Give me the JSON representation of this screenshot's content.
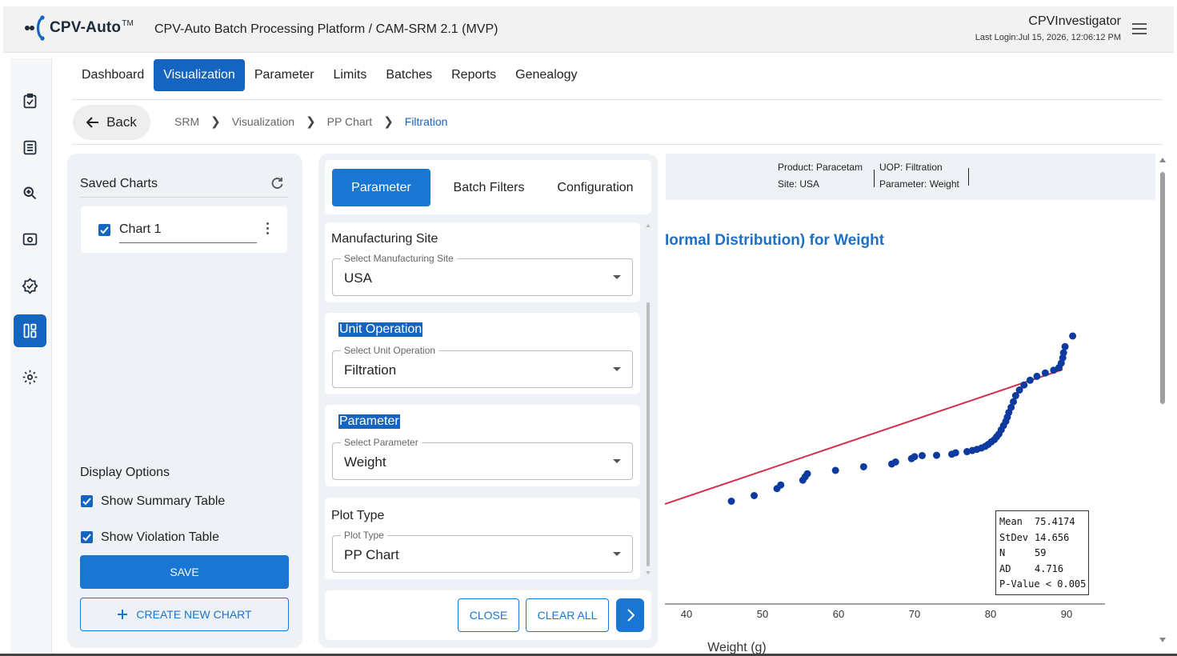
{
  "header": {
    "logo_text": "CPV-Auto",
    "logo_sup": "TM",
    "app_title": "CPV-Auto Batch Processing Platform / CAM-SRM 2.1 (MVP)",
    "user_name": "CPVInvestigator",
    "last_login": "Last Login:Jul 15, 2026, 12:06:12 PM"
  },
  "sidebar": {
    "items": [
      {
        "icon": "clipboard-check-icon"
      },
      {
        "icon": "list-icon"
      },
      {
        "icon": "zoom-icon"
      },
      {
        "icon": "monitor-icon"
      },
      {
        "icon": "badge-check-icon"
      },
      {
        "icon": "dashboard-icon",
        "active": true
      },
      {
        "icon": "gear-icon"
      }
    ]
  },
  "nav": {
    "items": [
      "Dashboard",
      "Visualization",
      "Parameter",
      "Limits",
      "Batches",
      "Reports",
      "Genealogy"
    ],
    "active": "Visualization"
  },
  "breadcrumb": {
    "back": "Back",
    "items": [
      "SRM",
      "Visualization",
      "PP Chart",
      "Filtration"
    ]
  },
  "saved_charts": {
    "title": "Saved Charts",
    "items": [
      {
        "name": "Chart 1",
        "checked": true
      }
    ]
  },
  "display_options": {
    "title": "Display Options",
    "summary_table": "Show Summary Table",
    "violation_table": "Show Violation Table",
    "save": "SAVE",
    "create_new": "CREATE NEW CHART"
  },
  "config_panel": {
    "tabs": [
      "Parameter",
      "Batch Filters",
      "Configuration"
    ],
    "active_tab": "Parameter",
    "fields": [
      {
        "title": "Manufacturing Site",
        "legend": "Select Manufacturing Site",
        "value": "USA"
      },
      {
        "title": "Unit Operation",
        "legend": "Select Unit Operation",
        "value": "Filtration"
      },
      {
        "title": "Parameter",
        "legend": "Select Parameter",
        "value": "Weight"
      },
      {
        "title": "Plot Type",
        "legend": "Plot Type",
        "value": "PP Chart"
      }
    ],
    "close": "CLOSE",
    "clear_all": "CLEAR ALL"
  },
  "chart_info": {
    "product": "Product: Paracetam",
    "site": "Site: USA",
    "uop": "UOP: Filtration",
    "parameter": "Parameter: Weight"
  },
  "chart_data": {
    "type": "scatter",
    "title": "Iormal Distribution) for Weight",
    "xlabel": "Weight (g)",
    "xticks": [
      40,
      50,
      60,
      70,
      80,
      90
    ],
    "xlim": [
      40,
      90
    ],
    "points": [
      {
        "x": 45.9,
        "y": 1.0
      },
      {
        "x": 48.9,
        "y": 3.0
      },
      {
        "x": 51.9,
        "y": 5.5
      },
      {
        "x": 52.4,
        "y": 6.8
      },
      {
        "x": 55.3,
        "y": 8.5
      },
      {
        "x": 55.6,
        "y": 9.7
      },
      {
        "x": 55.9,
        "y": 10.8
      },
      {
        "x": 59.6,
        "y": 12.0
      },
      {
        "x": 63.3,
        "y": 13.3
      },
      {
        "x": 67.0,
        "y": 14.3
      },
      {
        "x": 67.5,
        "y": 15.0
      },
      {
        "x": 69.6,
        "y": 16.2
      },
      {
        "x": 70.0,
        "y": 16.9
      },
      {
        "x": 71.0,
        "y": 17.3
      },
      {
        "x": 72.9,
        "y": 17.4
      },
      {
        "x": 74.9,
        "y": 17.8
      },
      {
        "x": 75.4,
        "y": 18.3
      },
      {
        "x": 76.9,
        "y": 18.7
      },
      {
        "x": 77.6,
        "y": 19.1
      },
      {
        "x": 78.2,
        "y": 19.5
      },
      {
        "x": 78.8,
        "y": 20.0
      },
      {
        "x": 79.3,
        "y": 20.6
      },
      {
        "x": 79.7,
        "y": 21.3
      },
      {
        "x": 80.1,
        "y": 22.2
      },
      {
        "x": 80.5,
        "y": 23.0
      },
      {
        "x": 80.8,
        "y": 24.0
      },
      {
        "x": 81.1,
        "y": 25.0
      },
      {
        "x": 81.4,
        "y": 26.5
      },
      {
        "x": 81.7,
        "y": 28.0
      },
      {
        "x": 82.0,
        "y": 29.5
      },
      {
        "x": 82.2,
        "y": 31.0
      },
      {
        "x": 82.4,
        "y": 32.7
      },
      {
        "x": 82.7,
        "y": 34.5
      },
      {
        "x": 83.0,
        "y": 36.5
      },
      {
        "x": 83.3,
        "y": 38.7
      },
      {
        "x": 83.8,
        "y": 40.7
      },
      {
        "x": 84.4,
        "y": 42.5
      },
      {
        "x": 85.2,
        "y": 44.2
      },
      {
        "x": 86.1,
        "y": 45.6
      },
      {
        "x": 87.2,
        "y": 46.8
      },
      {
        "x": 88.3,
        "y": 47.8
      },
      {
        "x": 89.0,
        "y": 48.7
      },
      {
        "x": 89.3,
        "y": 50.3
      },
      {
        "x": 89.5,
        "y": 52.2
      },
      {
        "x": 89.6,
        "y": 54.0
      },
      {
        "x": 89.8,
        "y": 56.2
      },
      {
        "x": 90.8,
        "y": 60.0
      }
    ],
    "fit_line": {
      "x": [
        40,
        90
      ],
      "y": [
        0,
        48.0
      ],
      "color": "#d32f4a"
    },
    "point_color": "#0d3a9e",
    "stats": {
      "Mean": "75.4174",
      "StDev": "14.656",
      "N": "59",
      "AD": "4.716",
      "P-Value": "< 0.005"
    }
  }
}
